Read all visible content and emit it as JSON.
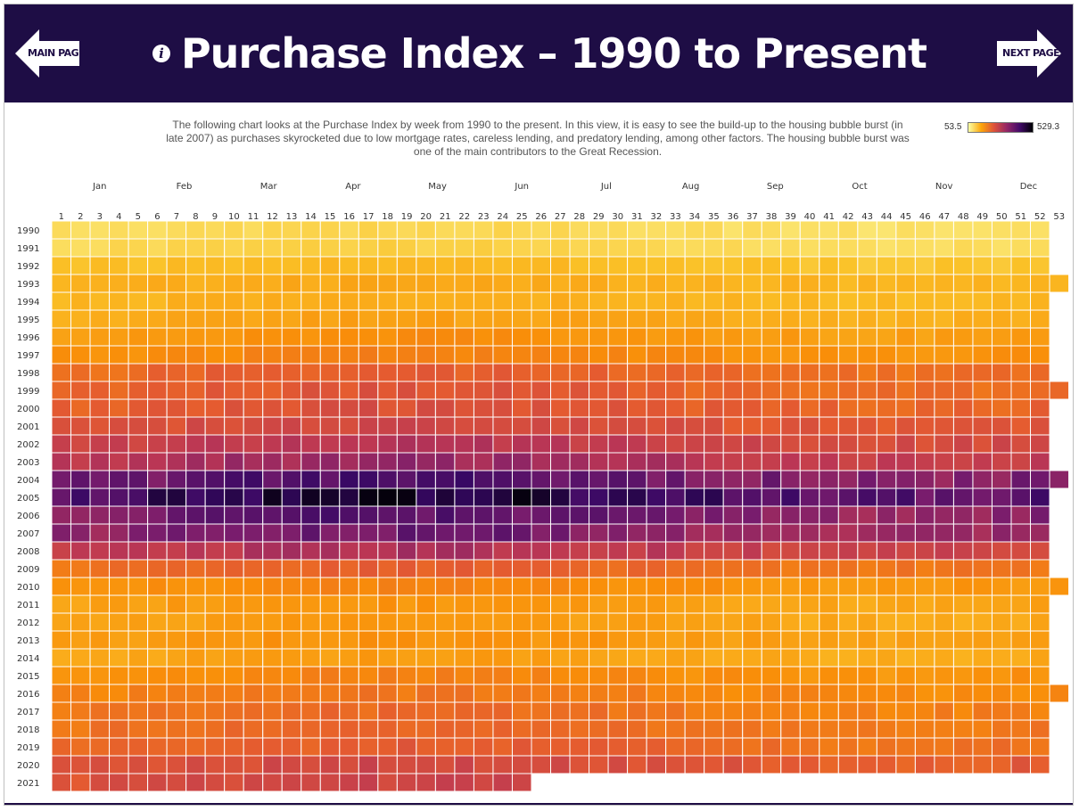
{
  "header": {
    "title": "Purchase Index – 1990 to Present",
    "info_icon": "info-icon",
    "main_page_label": "MAIN PAGE",
    "next_page_label": "NEXT PAGE",
    "background_color": "#1e0d45"
  },
  "description": "The following chart looks at the Purchase Index by week from 1990 to the present. In this view, it is easy to see the build-up to the housing bubble burst (in late 2007) as purchases skyrocketed due to low mortgage rates, careless lending, and predatory lending, among other factors. The housing bubble burst was one of the main contributors to the Great Recession.",
  "legend": {
    "min": "53.5",
    "max": "529.3"
  },
  "chart_data": {
    "type": "heatmap",
    "colorscale": "inferno (reversed)",
    "value_range": [
      53.5,
      529.3
    ],
    "month_labels": [
      "Jan",
      "Feb",
      "Mar",
      "Apr",
      "May",
      "Jun",
      "Jul",
      "Aug",
      "Sep",
      "Oct",
      "Nov",
      "Dec"
    ],
    "weeks": [
      1,
      2,
      3,
      4,
      5,
      6,
      7,
      8,
      9,
      10,
      11,
      12,
      13,
      14,
      15,
      16,
      17,
      18,
      19,
      20,
      21,
      22,
      23,
      24,
      25,
      26,
      27,
      28,
      29,
      30,
      31,
      32,
      33,
      34,
      35,
      36,
      37,
      38,
      39,
      40,
      41,
      42,
      43,
      44,
      45,
      46,
      47,
      48,
      49,
      50,
      51,
      52,
      53
    ],
    "years": [
      1990,
      1991,
      1992,
      1993,
      1994,
      1995,
      1996,
      1997,
      1998,
      1999,
      2000,
      2001,
      2002,
      2003,
      2004,
      2005,
      2006,
      2007,
      2008,
      2009,
      2010,
      2011,
      2012,
      2013,
      2014,
      2015,
      2016,
      2017,
      2018,
      2019,
      2020,
      2021
    ],
    "weeks_per_year": [
      52,
      52,
      52,
      53,
      52,
      52,
      52,
      52,
      52,
      53,
      52,
      52,
      52,
      52,
      53,
      52,
      52,
      52,
      52,
      52,
      53,
      52,
      52,
      52,
      52,
      52,
      53,
      52,
      52,
      52,
      52,
      25
    ],
    "annual_index_approx": {
      "1990": 95,
      "1991": 100,
      "1992": 130,
      "1993": 150,
      "1994": 145,
      "1995": 160,
      "1996": 185,
      "1997": 200,
      "1998": 250,
      "1999": 260,
      "2000": 270,
      "2001": 290,
      "2002": 320,
      "2003": 350,
      "2004": 425,
      "2005": 470,
      "2006": 410,
      "2007": 395,
      "2008": 330,
      "2009": 245,
      "2010": 195,
      "2011": 175,
      "2012": 170,
      "2013": 180,
      "2014": 165,
      "2015": 200,
      "2016": 215,
      "2017": 230,
      "2018": 240,
      "2019": 250,
      "2020": 285,
      "2021": 290
    }
  }
}
